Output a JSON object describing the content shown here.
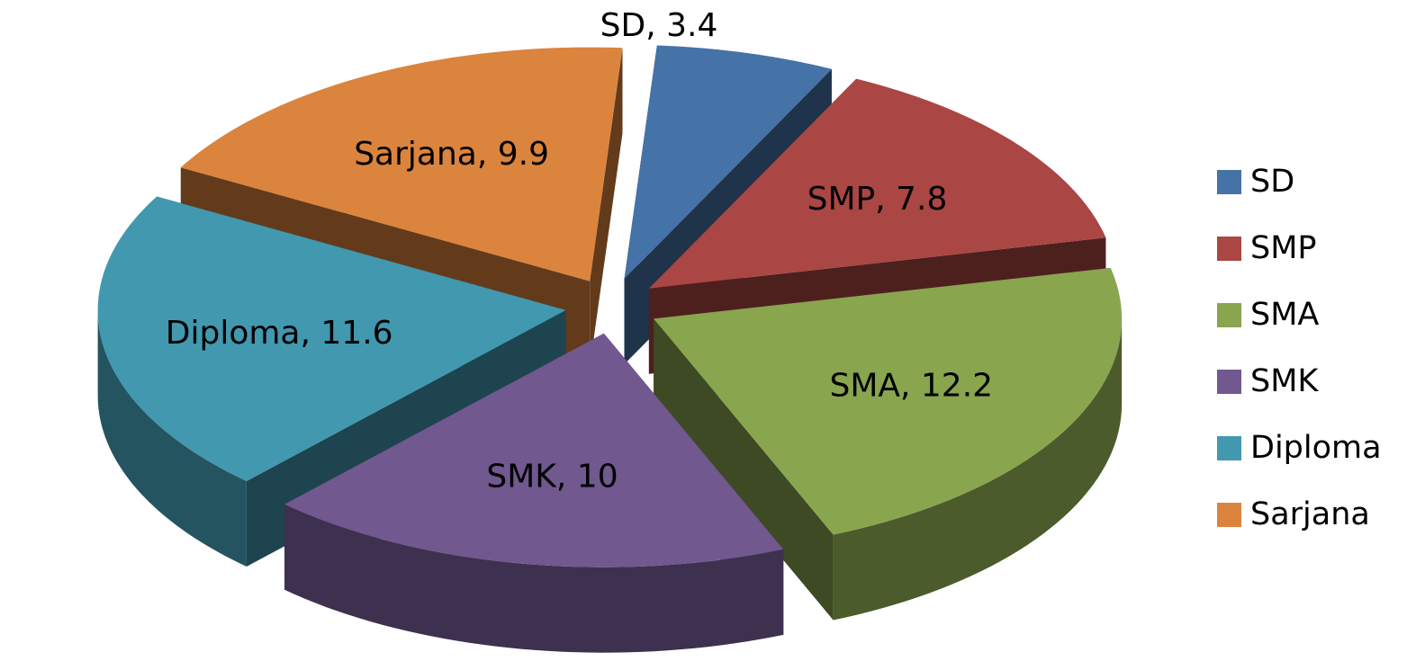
{
  "chart_data": {
    "type": "pie",
    "categories": [
      "SD",
      "SMP",
      "SMA",
      "SMK",
      "Diploma",
      "Sarjana"
    ],
    "values": [
      3.4,
      7.8,
      12.2,
      10,
      11.6,
      9.9
    ],
    "colors": [
      "#4572A7",
      "#AA4643",
      "#89A54E",
      "#71588F",
      "#4198AF",
      "#DB843D"
    ],
    "data_labels": [
      "SD, 3.4",
      "SMP, 7.8",
      "SMA, 12.2",
      "SMK, 10",
      "Diploma, 11.6",
      "Sarjana, 9.9"
    ],
    "exploded": true,
    "three_d": true,
    "legend_position": "right",
    "title": ""
  },
  "legend": {
    "items": [
      {
        "label": "SD",
        "color": "#4572A7"
      },
      {
        "label": "SMP",
        "color": "#AA4643"
      },
      {
        "label": "SMA",
        "color": "#89A54E"
      },
      {
        "label": "SMK",
        "color": "#71588F"
      },
      {
        "label": "Diploma",
        "color": "#4198AF"
      },
      {
        "label": "Sarjana",
        "color": "#DB843D"
      }
    ]
  }
}
